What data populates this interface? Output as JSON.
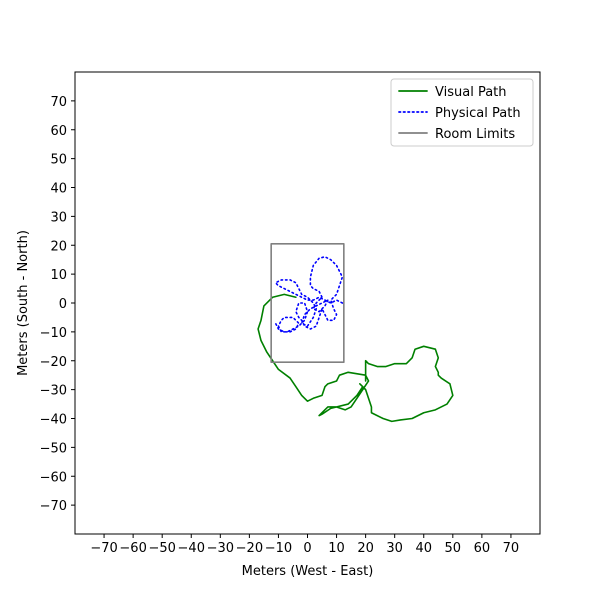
{
  "chart_data": {
    "type": "line",
    "title": "",
    "xlabel": "Meters (West - East)",
    "ylabel": "Meters (South - North)",
    "xlim": [
      -80,
      80
    ],
    "ylim": [
      -80,
      80
    ],
    "xticks": [
      -70,
      -60,
      -50,
      -40,
      -30,
      -20,
      -10,
      0,
      10,
      20,
      30,
      40,
      50,
      60,
      70
    ],
    "yticks": [
      -70,
      -60,
      -50,
      -40,
      -30,
      -20,
      -10,
      0,
      10,
      20,
      30,
      40,
      50,
      60,
      70
    ],
    "xtick_labels": [
      "−70",
      "−60",
      "−50",
      "−40",
      "−30",
      "−20",
      "−10",
      "0",
      "10",
      "20",
      "30",
      "40",
      "50",
      "60",
      "70"
    ],
    "ytick_labels": [
      "−70",
      "−60",
      "−50",
      "−40",
      "−30",
      "−20",
      "−10",
      "0",
      "10",
      "20",
      "30",
      "40",
      "50",
      "60",
      "70"
    ],
    "grid": false,
    "legend_position": "top-right",
    "series": [
      {
        "name": "Visual Path",
        "style": "solid",
        "color": "#008000",
        "points": [
          [
            -4,
            2
          ],
          [
            -8,
            3
          ],
          [
            -12,
            2
          ],
          [
            -15,
            -1
          ],
          [
            -16,
            -6
          ],
          [
            -17,
            -9
          ],
          [
            -16,
            -13
          ],
          [
            -14,
            -17
          ],
          [
            -12,
            -20
          ],
          [
            -10,
            -23
          ],
          [
            -6,
            -26
          ],
          [
            -4,
            -29
          ],
          [
            -2,
            -32
          ],
          [
            0,
            -34
          ],
          [
            2,
            -33
          ],
          [
            5,
            -32
          ],
          [
            6,
            -29
          ],
          [
            7,
            -28
          ],
          [
            10,
            -27
          ],
          [
            11,
            -25
          ],
          [
            14,
            -24
          ],
          [
            20,
            -25
          ],
          [
            21,
            -27
          ],
          [
            19,
            -30
          ],
          [
            17,
            -33
          ],
          [
            15,
            -36
          ],
          [
            13,
            -37
          ],
          [
            10,
            -36
          ],
          [
            7,
            -36
          ],
          [
            5,
            -38
          ],
          [
            4,
            -39
          ],
          [
            5,
            -38.5
          ],
          [
            8,
            -36.5
          ],
          [
            14,
            -35
          ],
          [
            17,
            -32
          ],
          [
            19,
            -29
          ],
          [
            18,
            -28
          ],
          [
            20,
            -30
          ],
          [
            22,
            -36
          ],
          [
            22,
            -38
          ],
          [
            26,
            -40
          ],
          [
            29,
            -41
          ],
          [
            32,
            -40.5
          ],
          [
            36,
            -40
          ],
          [
            40,
            -38
          ],
          [
            44,
            -37
          ],
          [
            48,
            -35
          ],
          [
            50,
            -32
          ],
          [
            49,
            -28
          ],
          [
            46,
            -26
          ],
          [
            45,
            -25
          ],
          [
            45,
            -24
          ],
          [
            44,
            -22
          ],
          [
            45,
            -19
          ],
          [
            44,
            -16
          ],
          [
            40,
            -15
          ],
          [
            37,
            -16
          ],
          [
            36,
            -19
          ],
          [
            34,
            -21
          ],
          [
            30,
            -21
          ],
          [
            27,
            -22
          ],
          [
            24,
            -22
          ],
          [
            21,
            -21
          ],
          [
            20,
            -20
          ],
          [
            20,
            -23
          ],
          [
            20,
            -27
          ]
        ]
      },
      {
        "name": "Physical Path",
        "style": "dotted",
        "color": "#0000ff",
        "points": [
          [
            12,
            0
          ],
          [
            10,
            1
          ],
          [
            8,
            0
          ],
          [
            6,
            1
          ],
          [
            4,
            2
          ],
          [
            2,
            1
          ],
          [
            0,
            1
          ],
          [
            -2,
            2
          ],
          [
            -4,
            3
          ],
          [
            -6,
            4
          ],
          [
            -8,
            5
          ],
          [
            -10,
            6
          ],
          [
            -11,
            7
          ],
          [
            -9,
            8
          ],
          [
            -6,
            8
          ],
          [
            -4,
            7
          ],
          [
            -3,
            5
          ],
          [
            -2,
            3
          ],
          [
            0,
            2
          ],
          [
            2,
            0
          ],
          [
            3,
            -2
          ],
          [
            2,
            -5
          ],
          [
            0,
            -8
          ],
          [
            -2,
            -7
          ],
          [
            -1,
            -4
          ],
          [
            1,
            -2
          ],
          [
            3,
            -1
          ],
          [
            5,
            0
          ],
          [
            7,
            1
          ],
          [
            6,
            -1
          ],
          [
            4,
            -3
          ],
          [
            2,
            -2
          ],
          [
            3,
            0
          ],
          [
            5,
            2
          ],
          [
            4,
            4
          ],
          [
            2,
            5
          ],
          [
            1,
            6
          ],
          [
            1,
            9
          ],
          [
            2,
            13
          ],
          [
            4,
            15.5
          ],
          [
            6,
            16
          ],
          [
            8,
            15
          ],
          [
            10,
            13
          ],
          [
            11,
            11
          ],
          [
            12,
            9
          ],
          [
            11,
            6
          ],
          [
            10,
            3
          ],
          [
            8,
            1
          ],
          [
            9,
            -2
          ],
          [
            10,
            -4
          ],
          [
            9,
            -6
          ],
          [
            7,
            -6
          ],
          [
            6,
            -4
          ],
          [
            5,
            -2
          ],
          [
            4,
            -5
          ],
          [
            3,
            -8
          ],
          [
            1,
            -9
          ],
          [
            -1,
            -8
          ],
          [
            -2,
            -6
          ],
          [
            -3,
            -5
          ],
          [
            -4,
            -3
          ],
          [
            -3,
            0
          ],
          [
            -1,
            0
          ],
          [
            0,
            -3
          ],
          [
            -1,
            -6
          ],
          [
            -3,
            -8
          ],
          [
            -5,
            -9
          ],
          [
            -7,
            -10
          ],
          [
            -9,
            -10
          ],
          [
            -10,
            -8
          ],
          [
            -9,
            -6
          ],
          [
            -8,
            -5
          ],
          [
            -5,
            -5
          ],
          [
            -3,
            -7
          ],
          [
            -4,
            -9
          ],
          [
            -6,
            -10
          ],
          [
            -8,
            -10
          ],
          [
            -10,
            -9
          ],
          [
            -11,
            -7
          ]
        ]
      },
      {
        "name": "Room Limits",
        "style": "solid",
        "color": "#808080",
        "points": [
          [
            -12.5,
            20.5
          ],
          [
            12.5,
            20.5
          ],
          [
            12.5,
            -20.5
          ],
          [
            -12.5,
            -20.5
          ],
          [
            -12.5,
            20.5
          ]
        ]
      }
    ]
  }
}
